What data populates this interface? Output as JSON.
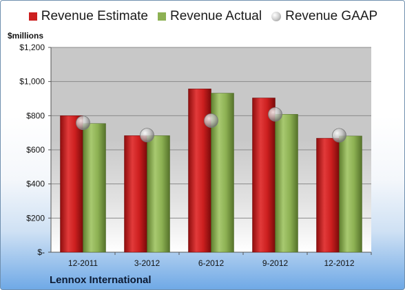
{
  "chart_data": {
    "type": "bar",
    "categories": [
      "12-2011",
      "3-2012",
      "6-2012",
      "9-2012",
      "12-2012"
    ],
    "series": [
      {
        "name": "Revenue Estimate",
        "values": [
          800,
          683,
          957,
          904,
          668
        ],
        "color": "#cc1f1f",
        "kind": "bar"
      },
      {
        "name": "Revenue Actual",
        "values": [
          754,
          683,
          932,
          808,
          681
        ],
        "color": "#8db153",
        "kind": "bar"
      },
      {
        "name": "Revenue GAAP",
        "values": [
          758,
          686,
          771,
          808,
          685
        ],
        "color": "#b0b0b0",
        "kind": "marker"
      }
    ],
    "ylabel": "$millions",
    "ylim": [
      0,
      1200
    ],
    "yticks": [
      0,
      200,
      400,
      600,
      800,
      1000,
      1200
    ],
    "ytick_labels": [
      "$-",
      "$200",
      "$400",
      "$600",
      "$800",
      "$1,000",
      "$1,200"
    ],
    "grid": true,
    "legend_position": "top",
    "plot_background": "#c8c8c8"
  },
  "company": "Lennox International"
}
